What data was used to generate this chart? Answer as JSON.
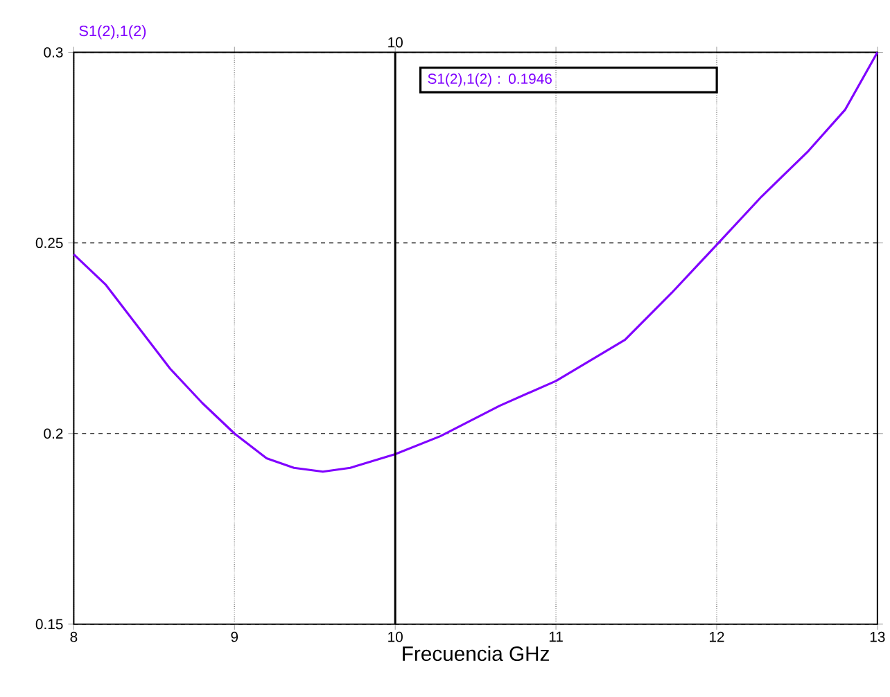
{
  "chart_data": {
    "type": "line",
    "xlabel": "Frecuencia GHz",
    "x": [
      8,
      8.2,
      8.4,
      8.6,
      8.8,
      9.0,
      9.2,
      9.37,
      9.55,
      9.72,
      10,
      10.28,
      10.65,
      11.0,
      11.43,
      11.72,
      12.0,
      12.28,
      12.57,
      12.8,
      13
    ],
    "series": [
      {
        "name": "S1(2),1(2)",
        "color": "#8000ff",
        "values": [
          0.247,
          0.239,
          0.228,
          0.217,
          0.208,
          0.2,
          0.1935,
          0.191,
          0.19,
          0.191,
          0.1946,
          0.1993,
          0.2073,
          0.2138,
          0.2246,
          0.2369,
          0.2495,
          0.2622,
          0.2741,
          0.285,
          0.3
        ]
      }
    ],
    "xlim": [
      8,
      13
    ],
    "ylim": [
      0.15,
      0.3
    ],
    "xticks": [
      8,
      9,
      10,
      11,
      12,
      13
    ],
    "yticks": [
      0.15,
      0.2,
      0.25,
      0.3
    ],
    "grid": true,
    "legend": false,
    "marker": "none",
    "line_style": "solid",
    "ref_lines": [
      {
        "axis": "x",
        "value": 10,
        "label": "10",
        "color": "#000000"
      }
    ],
    "annotations": [
      "S1(2),1(2) : 0.1946"
    ]
  }
}
